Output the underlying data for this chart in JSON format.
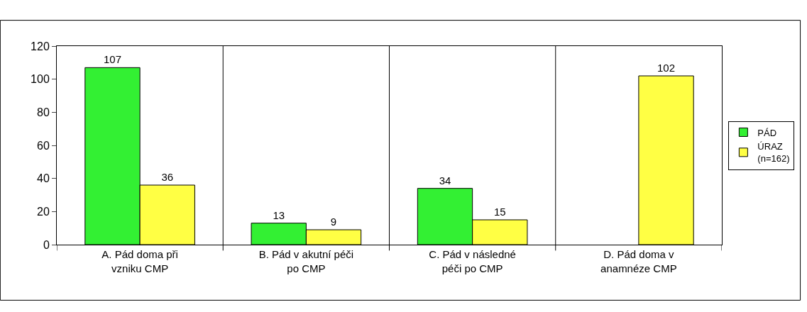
{
  "chart_data": {
    "type": "bar",
    "categories": [
      "A. Pád doma při vzniku CMP",
      "B. Pád v akutní péči po CMP",
      "C. Pád v následné péči po CMP",
      "D. Pád doma v anamnéze CMP"
    ],
    "series": [
      {
        "name": "PÁD",
        "color": "#33f033",
        "values": [
          107,
          13,
          34,
          null
        ]
      },
      {
        "name": "ÚRAZ (n=162)",
        "color": "#ffff44",
        "values": [
          36,
          9,
          15,
          102
        ]
      }
    ],
    "ylim": [
      0,
      120
    ],
    "yticks": [
      0,
      20,
      40,
      60,
      80,
      100,
      120
    ],
    "grid": "x",
    "legend": "right",
    "data_labels": true
  }
}
